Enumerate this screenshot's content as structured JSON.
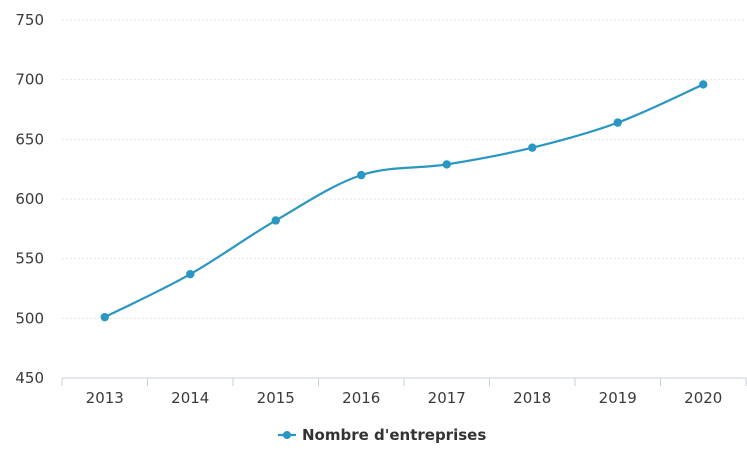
{
  "chart_data": {
    "type": "line",
    "x": [
      "2013",
      "2014",
      "2015",
      "2016",
      "2017",
      "2018",
      "2019",
      "2020"
    ],
    "series": [
      {
        "name": "Nombre d'entreprises",
        "values": [
          501,
          537,
          582,
          620,
          629,
          643,
          664,
          696
        ],
        "color": "#2a97c3"
      }
    ],
    "ylim": [
      450,
      750
    ],
    "yticks": [
      450,
      500,
      550,
      600,
      650,
      700,
      750
    ],
    "grid": "horizontal",
    "legend_position": "bottom-center"
  }
}
